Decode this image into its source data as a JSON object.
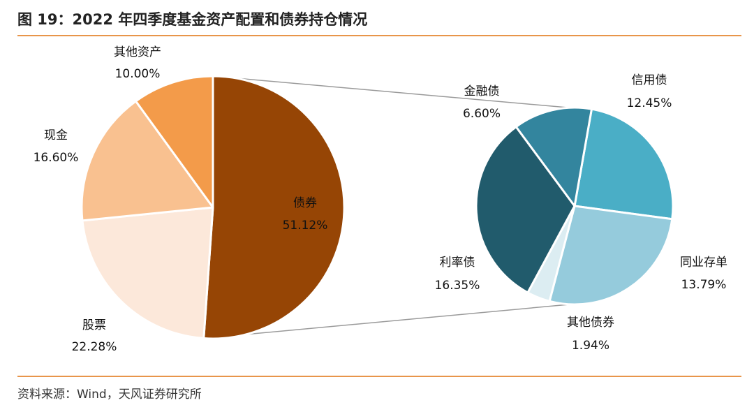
{
  "header": {
    "title": "图 19：2022 年四季度基金资产配置和债券持仓情况"
  },
  "footer": {
    "source": "资料来源：Wind，天风证券研究所"
  },
  "colors": {
    "accent": "#e8954a"
  },
  "chart_data": [
    {
      "type": "pie",
      "title": "基金资产配置",
      "slices": [
        {
          "label": "债券",
          "value": 51.12,
          "pct_text": "51.12%",
          "color": "#964505"
        },
        {
          "label": "股票",
          "value": 22.28,
          "pct_text": "22.28%",
          "color": "#fce8da"
        },
        {
          "label": "现金",
          "value": 16.6,
          "pct_text": "16.60%",
          "color": "#f9c190"
        },
        {
          "label": "其他资产",
          "value": 10.0,
          "pct_text": "10.00%",
          "color": "#f39b4a"
        }
      ]
    },
    {
      "type": "pie",
      "title": "债券持仓",
      "slices": [
        {
          "label": "信用债",
          "value": 12.45,
          "pct_text": "12.45%",
          "color": "#4aaec6"
        },
        {
          "label": "同业存单",
          "value": 13.79,
          "pct_text": "13.79%",
          "color": "#95cbdc"
        },
        {
          "label": "其他债券",
          "value": 1.94,
          "pct_text": "1.94%",
          "color": "#dcedf2"
        },
        {
          "label": "利率债",
          "value": 16.35,
          "pct_text": "16.35%",
          "color": "#215b6c"
        },
        {
          "label": "金融债",
          "value": 6.6,
          "pct_text": "6.60%",
          "color": "#33859e"
        }
      ]
    }
  ]
}
